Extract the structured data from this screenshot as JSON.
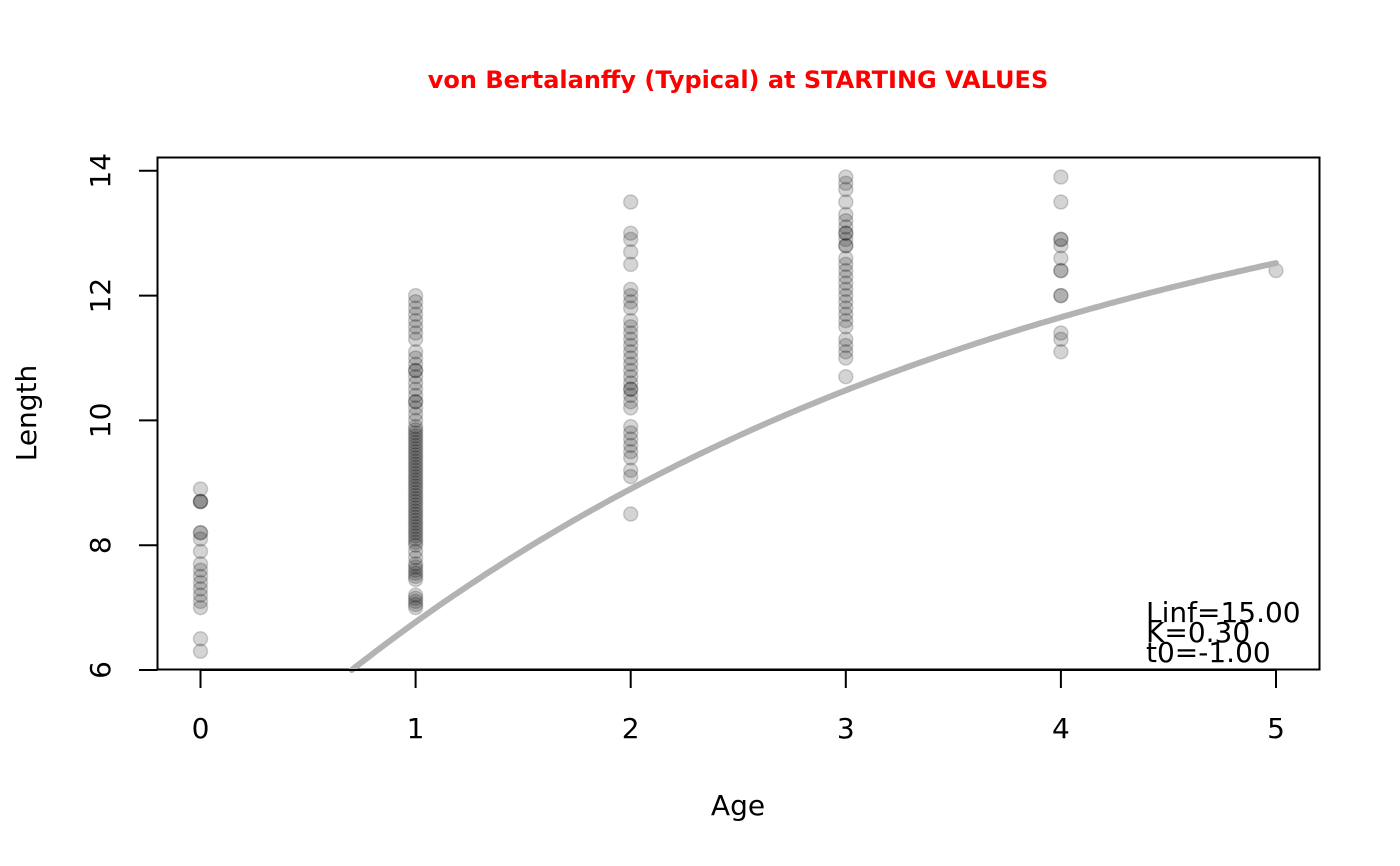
{
  "chart_data": {
    "type": "scatter",
    "title": "von Bertalanffy (Typical) at STARTING VALUES",
    "xlabel": "Age",
    "ylabel": "Length",
    "xlim": [
      -0.2,
      5.2
    ],
    "ylim": [
      6,
      14.2
    ],
    "x_ticks": [
      0,
      1,
      2,
      3,
      4,
      5
    ],
    "y_ticks": [
      6,
      8,
      10,
      12,
      14
    ],
    "grid": false,
    "colors": {
      "title": "#ff0000",
      "points": "#000000",
      "curve": "#b3b3b3",
      "axis": "#000000"
    },
    "series": [
      {
        "type": "scatter",
        "points": [
          [
            0,
            6.3
          ],
          [
            0,
            6.5
          ],
          [
            0,
            7.0
          ],
          [
            0,
            7.1
          ],
          [
            0,
            7.2
          ],
          [
            0,
            7.3
          ],
          [
            0,
            7.4
          ],
          [
            0,
            7.5
          ],
          [
            0,
            7.6
          ],
          [
            0,
            7.7
          ],
          [
            0,
            7.9
          ],
          [
            0,
            8.1
          ],
          [
            0,
            8.2
          ],
          [
            0,
            8.2
          ],
          [
            0,
            8.7
          ],
          [
            0,
            8.7
          ],
          [
            0,
            8.7
          ],
          [
            0,
            8.9
          ],
          [
            1,
            7.0
          ],
          [
            1,
            7.05
          ],
          [
            1,
            7.1
          ],
          [
            1,
            7.15
          ],
          [
            1,
            7.2
          ],
          [
            1,
            7.45
          ],
          [
            1,
            7.5
          ],
          [
            1,
            7.55
          ],
          [
            1,
            7.6
          ],
          [
            1,
            7.65
          ],
          [
            1,
            7.7
          ],
          [
            1,
            7.8
          ],
          [
            1,
            7.9
          ],
          [
            1,
            8.0
          ],
          [
            1,
            8.05
          ],
          [
            1,
            8.1
          ],
          [
            1,
            8.15
          ],
          [
            1,
            8.2
          ],
          [
            1,
            8.25
          ],
          [
            1,
            8.3
          ],
          [
            1,
            8.35
          ],
          [
            1,
            8.4
          ],
          [
            1,
            8.45
          ],
          [
            1,
            8.5
          ],
          [
            1,
            8.55
          ],
          [
            1,
            8.6
          ],
          [
            1,
            8.65
          ],
          [
            1,
            8.7
          ],
          [
            1,
            8.75
          ],
          [
            1,
            8.8
          ],
          [
            1,
            8.85
          ],
          [
            1,
            8.9
          ],
          [
            1,
            8.95
          ],
          [
            1,
            9.0
          ],
          [
            1,
            9.05
          ],
          [
            1,
            9.1
          ],
          [
            1,
            9.15
          ],
          [
            1,
            9.2
          ],
          [
            1,
            9.25
          ],
          [
            1,
            9.3
          ],
          [
            1,
            9.35
          ],
          [
            1,
            9.4
          ],
          [
            1,
            9.45
          ],
          [
            1,
            9.5
          ],
          [
            1,
            9.55
          ],
          [
            1,
            9.6
          ],
          [
            1,
            9.65
          ],
          [
            1,
            9.7
          ],
          [
            1,
            9.75
          ],
          [
            1,
            9.8
          ],
          [
            1,
            9.85
          ],
          [
            1,
            9.9
          ],
          [
            1,
            10.0
          ],
          [
            1,
            10.1
          ],
          [
            1,
            10.2
          ],
          [
            1,
            10.3
          ],
          [
            1,
            10.3
          ],
          [
            1,
            10.4
          ],
          [
            1,
            10.5
          ],
          [
            1,
            10.6
          ],
          [
            1,
            10.7
          ],
          [
            1,
            10.8
          ],
          [
            1,
            10.8
          ],
          [
            1,
            10.9
          ],
          [
            1,
            11.0
          ],
          [
            1,
            11.1
          ],
          [
            1,
            11.3
          ],
          [
            1,
            11.4
          ],
          [
            1,
            11.5
          ],
          [
            1,
            11.6
          ],
          [
            1,
            11.7
          ],
          [
            1,
            11.8
          ],
          [
            1,
            11.9
          ],
          [
            1,
            12.0
          ],
          [
            2,
            8.5
          ],
          [
            2,
            9.1
          ],
          [
            2,
            9.2
          ],
          [
            2,
            9.4
          ],
          [
            2,
            9.5
          ],
          [
            2,
            9.6
          ],
          [
            2,
            9.7
          ],
          [
            2,
            9.8
          ],
          [
            2,
            9.9
          ],
          [
            2,
            10.2
          ],
          [
            2,
            10.3
          ],
          [
            2,
            10.4
          ],
          [
            2,
            10.5
          ],
          [
            2,
            10.5
          ],
          [
            2,
            10.6
          ],
          [
            2,
            10.7
          ],
          [
            2,
            10.8
          ],
          [
            2,
            10.9
          ],
          [
            2,
            11.0
          ],
          [
            2,
            11.1
          ],
          [
            2,
            11.2
          ],
          [
            2,
            11.3
          ],
          [
            2,
            11.4
          ],
          [
            2,
            11.5
          ],
          [
            2,
            11.6
          ],
          [
            2,
            11.8
          ],
          [
            2,
            11.9
          ],
          [
            2,
            12.0
          ],
          [
            2,
            12.1
          ],
          [
            2,
            12.5
          ],
          [
            2,
            12.7
          ],
          [
            2,
            12.9
          ],
          [
            2,
            13.0
          ],
          [
            2,
            13.5
          ],
          [
            3,
            10.7
          ],
          [
            3,
            11.0
          ],
          [
            3,
            11.1
          ],
          [
            3,
            11.2
          ],
          [
            3,
            11.3
          ],
          [
            3,
            11.5
          ],
          [
            3,
            11.6
          ],
          [
            3,
            11.7
          ],
          [
            3,
            11.8
          ],
          [
            3,
            11.9
          ],
          [
            3,
            12.0
          ],
          [
            3,
            12.1
          ],
          [
            3,
            12.2
          ],
          [
            3,
            12.3
          ],
          [
            3,
            12.4
          ],
          [
            3,
            12.5
          ],
          [
            3,
            12.6
          ],
          [
            3,
            12.8
          ],
          [
            3,
            12.8
          ],
          [
            3,
            12.9
          ],
          [
            3,
            13.0
          ],
          [
            3,
            13.0
          ],
          [
            3,
            13.1
          ],
          [
            3,
            13.2
          ],
          [
            3,
            13.3
          ],
          [
            3,
            13.5
          ],
          [
            3,
            13.7
          ],
          [
            3,
            13.8
          ],
          [
            3,
            13.9
          ],
          [
            4,
            11.1
          ],
          [
            4,
            11.3
          ],
          [
            4,
            11.4
          ],
          [
            4,
            12.0
          ],
          [
            4,
            12.0
          ],
          [
            4,
            12.4
          ],
          [
            4,
            12.4
          ],
          [
            4,
            12.6
          ],
          [
            4,
            12.8
          ],
          [
            4,
            12.9
          ],
          [
            4,
            12.9
          ],
          [
            4,
            13.5
          ],
          [
            4,
            13.9
          ],
          [
            5,
            12.4
          ]
        ]
      },
      {
        "type": "line",
        "model": "von Bertalanffy (Typical)",
        "params": {
          "Linf": 15.0,
          "K": 0.3,
          "t0": -1.0
        },
        "x_range": [
          0,
          5
        ]
      }
    ],
    "annotations": [
      "Linf=15.00",
      "K=0.30",
      "t0=-1.00"
    ]
  }
}
